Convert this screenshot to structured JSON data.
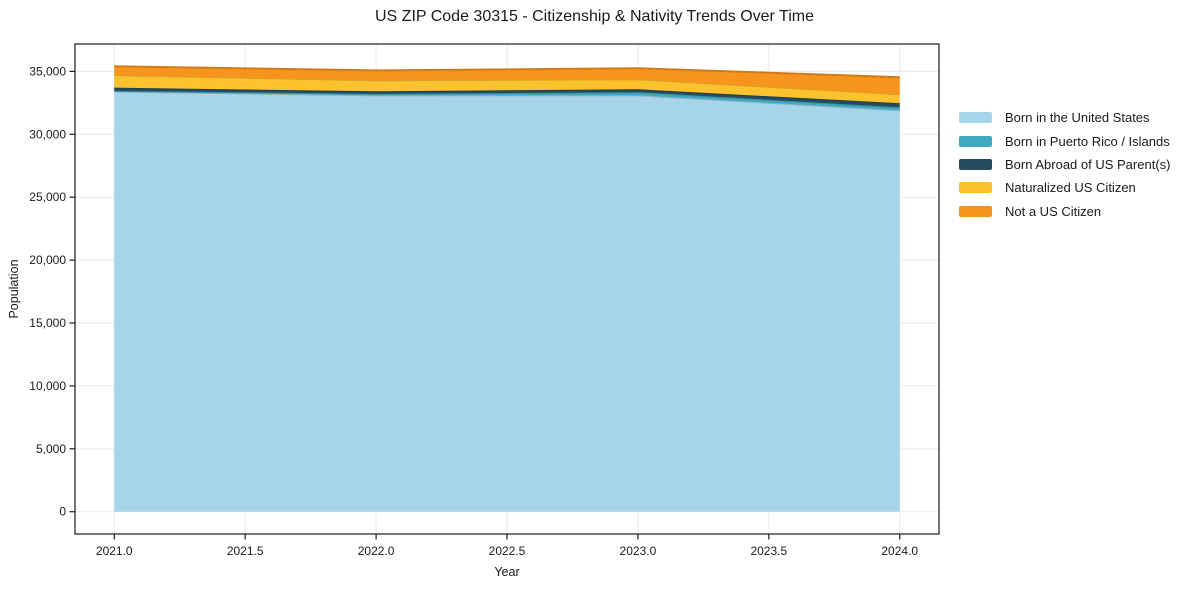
{
  "chart_data": {
    "type": "area",
    "stacked": true,
    "title": "US ZIP Code 30315 - Citizenship & Nativity Trends Over Time",
    "xlabel": "Year",
    "ylabel": "Population",
    "x": [
      2021,
      2022,
      2023,
      2024
    ],
    "series": [
      {
        "name": "Born in the United States",
        "color": "#A6D4E8",
        "values": [
          33400,
          33100,
          33110,
          31910
        ]
      },
      {
        "name": "Born in Puerto Rico / Islands",
        "color": "#41A8C2",
        "values": [
          60,
          120,
          240,
          240
        ]
      },
      {
        "name": "Born Abroad of US Parent(s)",
        "color": "#254B5E",
        "values": [
          250,
          200,
          230,
          320
        ]
      },
      {
        "name": "Naturalized US Citizen",
        "color": "#FCC22D",
        "values": [
          1000,
          870,
          800,
          720
        ]
      },
      {
        "name": "Not a US Citizen",
        "color": "#F7941D",
        "values": [
          700,
          790,
          870,
          1350
        ]
      }
    ],
    "xlim": [
      2020.85,
      2024.15
    ],
    "ylim": [
      -1770,
      37180
    ],
    "x_ticks": [
      2021.0,
      2021.5,
      2022.0,
      2022.5,
      2023.0,
      2023.5,
      2024.0
    ],
    "y_ticks": [
      0,
      5000,
      10000,
      15000,
      20000,
      25000,
      30000,
      35000
    ],
    "grid": true,
    "legend_position": "right-outside"
  },
  "colors": {
    "grid": "#E9E9E9",
    "spine": "#1a1a1a",
    "text": "#1a1a1a",
    "background": "#FFFFFF"
  }
}
